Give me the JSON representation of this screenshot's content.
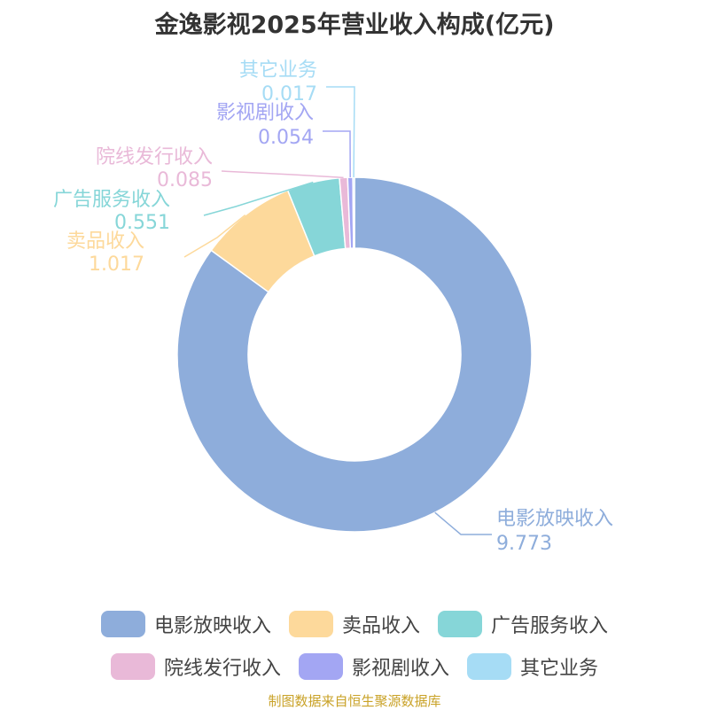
{
  "title": "金逸影视2025年营业收入构成(亿元)",
  "source": "制图数据来自恒生聚源数据库",
  "chart_data": {
    "type": "pie",
    "variant": "donut",
    "unit": "亿元",
    "legend_position": "bottom",
    "slices": [
      {
        "name": "电影放映收入",
        "value": 9.773,
        "label": "9.773",
        "color": "#8eaddb"
      },
      {
        "name": "卖品收入",
        "value": 1.017,
        "label": "1.017",
        "color": "#fdd99b"
      },
      {
        "name": "广告服务收入",
        "value": 0.551,
        "label": "0.551",
        "color": "#86d6d8"
      },
      {
        "name": "院线发行收入",
        "value": 0.085,
        "label": "0.085",
        "color": "#e9b9d8"
      },
      {
        "name": "影视剧收入",
        "value": 0.054,
        "label": "0.054",
        "color": "#a3a6f3"
      },
      {
        "name": "其它业务",
        "value": 0.017,
        "label": "0.017",
        "color": "#a6dcf5"
      }
    ]
  }
}
